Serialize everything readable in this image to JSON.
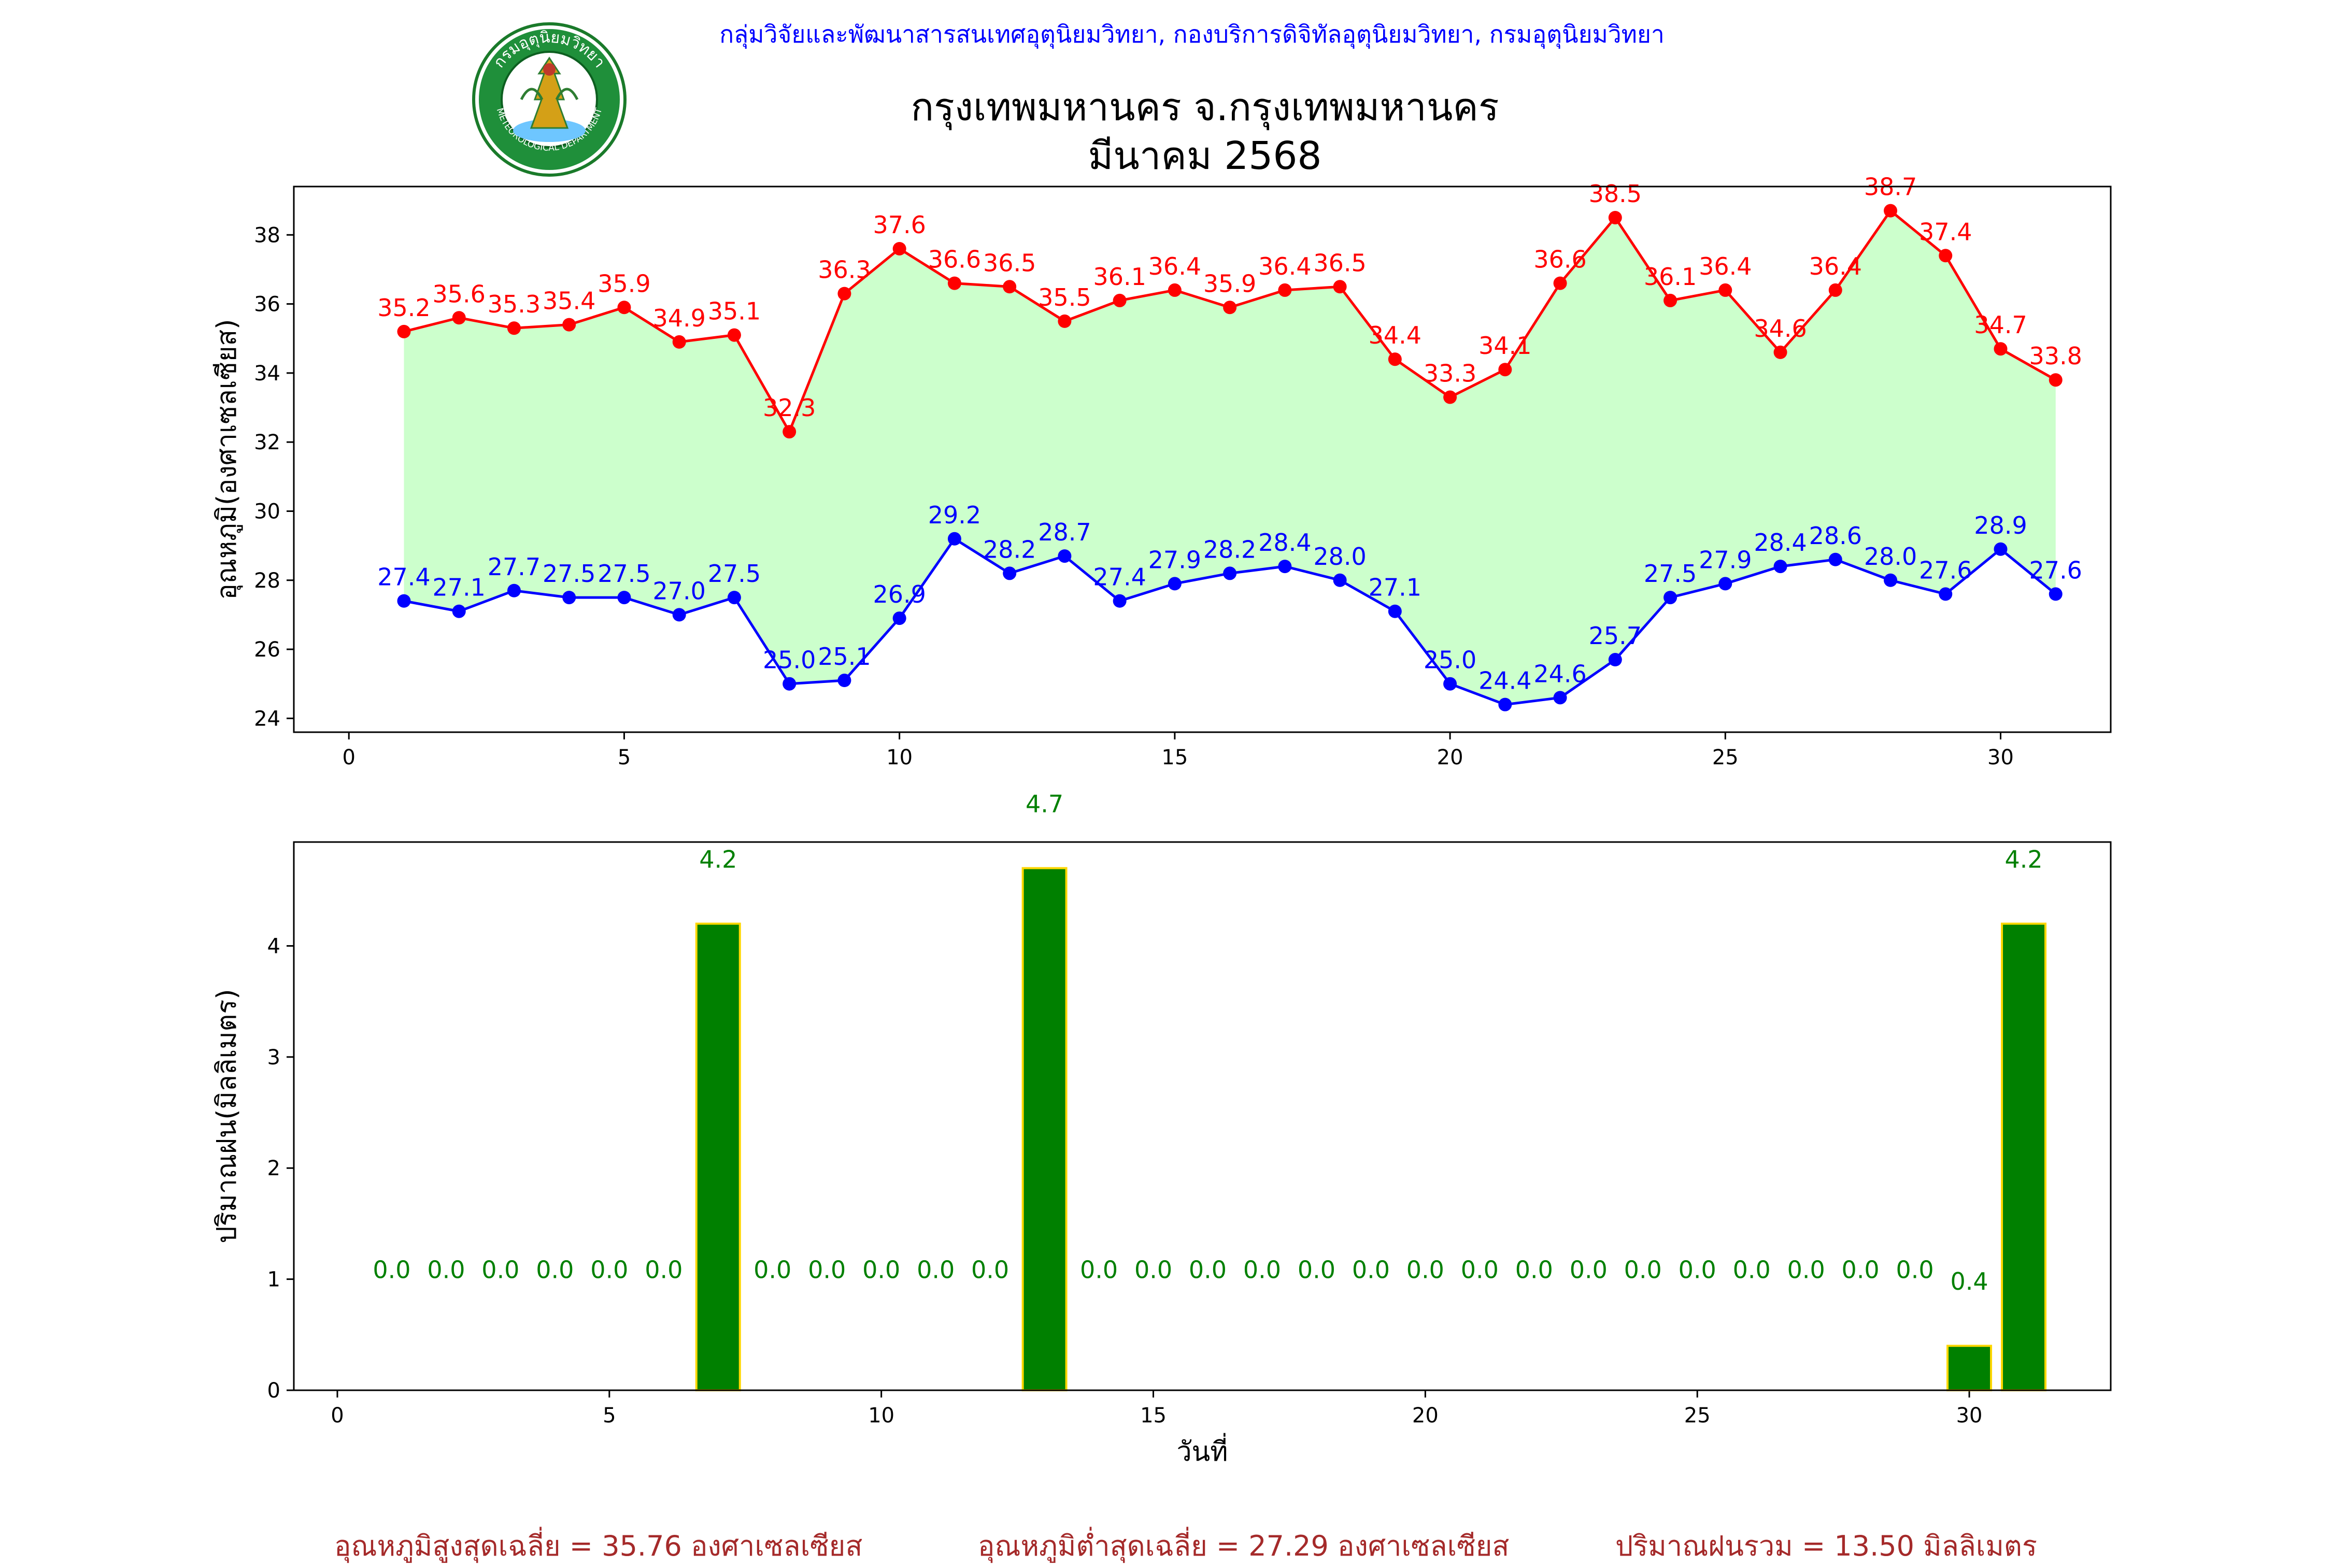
{
  "header": {
    "department": "กลุ่มวิจัยและพัฒนาสารสนเทศอุตุนิยมวิทยา, กองบริการดิจิทัลอุตุนิยมวิทยา, กรมอุตุนิยมวิทยา",
    "title_line1": "กรุงเทพมหานคร จ.กรุงเทพมหานคร",
    "title_line2": "มีนาคม 2568",
    "logo_text_top": "กรมอุตุนิยมวิทยา",
    "logo_text_bottom": "METEOROLOGICAL DEPARTMENT"
  },
  "footer": {
    "avg_max": "อุณหภูมิสูงสุดเฉลี่ย = 35.76 องศาเซลเซียส",
    "avg_min": "อุณหภูมิต่ำสุดเฉลี่ย = 27.29 องศาเซลเซียส",
    "total_rain": "ปริมาณฝนรวม = 13.50 มิลลิเมตร"
  },
  "colors": {
    "max_line": "#ff0000",
    "min_line": "#0000ff",
    "fill": "#ccffcc",
    "rain_bar": "#008000",
    "rain_edge": "#ffd700",
    "rain_label": "#008000"
  },
  "chart_data": [
    {
      "type": "line",
      "ylabel": "อุณหภูมิ(องศาเซลเซียส)",
      "xlim": [
        -1,
        32
      ],
      "ylim": [
        23.6,
        39.4
      ],
      "xticks": [
        0,
        5,
        10,
        15,
        20,
        25,
        30
      ],
      "yticks": [
        24,
        26,
        28,
        30,
        32,
        34,
        36,
        38
      ],
      "x": [
        1,
        2,
        3,
        4,
        5,
        6,
        7,
        8,
        9,
        10,
        11,
        12,
        13,
        14,
        15,
        16,
        17,
        18,
        19,
        20,
        21,
        22,
        23,
        24,
        25,
        26,
        27,
        28,
        29,
        30,
        31
      ],
      "series": [
        {
          "key": "max",
          "values": [
            35.2,
            35.6,
            35.3,
            35.4,
            35.9,
            34.9,
            35.1,
            32.3,
            36.3,
            37.6,
            36.6,
            36.5,
            35.5,
            36.1,
            36.4,
            35.9,
            36.4,
            36.5,
            34.4,
            33.3,
            34.1,
            36.6,
            38.5,
            36.1,
            36.4,
            34.6,
            36.4,
            38.7,
            37.4,
            34.7,
            33.8
          ]
        },
        {
          "key": "min",
          "values": [
            27.4,
            27.1,
            27.7,
            27.5,
            27.5,
            27.0,
            27.5,
            25.0,
            25.1,
            26.9,
            29.2,
            28.2,
            28.7,
            27.4,
            27.9,
            28.2,
            28.4,
            28.0,
            27.1,
            25.0,
            24.4,
            24.6,
            25.7,
            27.5,
            27.9,
            28.4,
            28.6,
            28.0,
            27.6,
            28.9,
            27.6
          ]
        }
      ]
    },
    {
      "type": "bar",
      "xlabel": "วันที่",
      "ylabel": "ปริมาณฝน(มิลลิเมตร)",
      "xlim": [
        -0.8,
        32.6
      ],
      "ylim": [
        0,
        4.935
      ],
      "xticks": [
        0,
        5,
        10,
        15,
        20,
        25,
        30
      ],
      "yticks": [
        0,
        1,
        2,
        3,
        4
      ],
      "x": [
        1,
        2,
        3,
        4,
        5,
        6,
        7,
        8,
        9,
        10,
        11,
        12,
        13,
        14,
        15,
        16,
        17,
        18,
        19,
        20,
        21,
        22,
        23,
        24,
        25,
        26,
        27,
        28,
        29,
        30,
        31
      ],
      "values": [
        0.0,
        0.0,
        0.0,
        0.0,
        0.0,
        0.0,
        4.2,
        0.0,
        0.0,
        0.0,
        0.0,
        0.0,
        4.7,
        0.0,
        0.0,
        0.0,
        0.0,
        0.0,
        0.0,
        0.0,
        0.0,
        0.0,
        0.0,
        0.0,
        0.0,
        0.0,
        0.0,
        0.0,
        0.0,
        0.4,
        4.2
      ]
    }
  ]
}
